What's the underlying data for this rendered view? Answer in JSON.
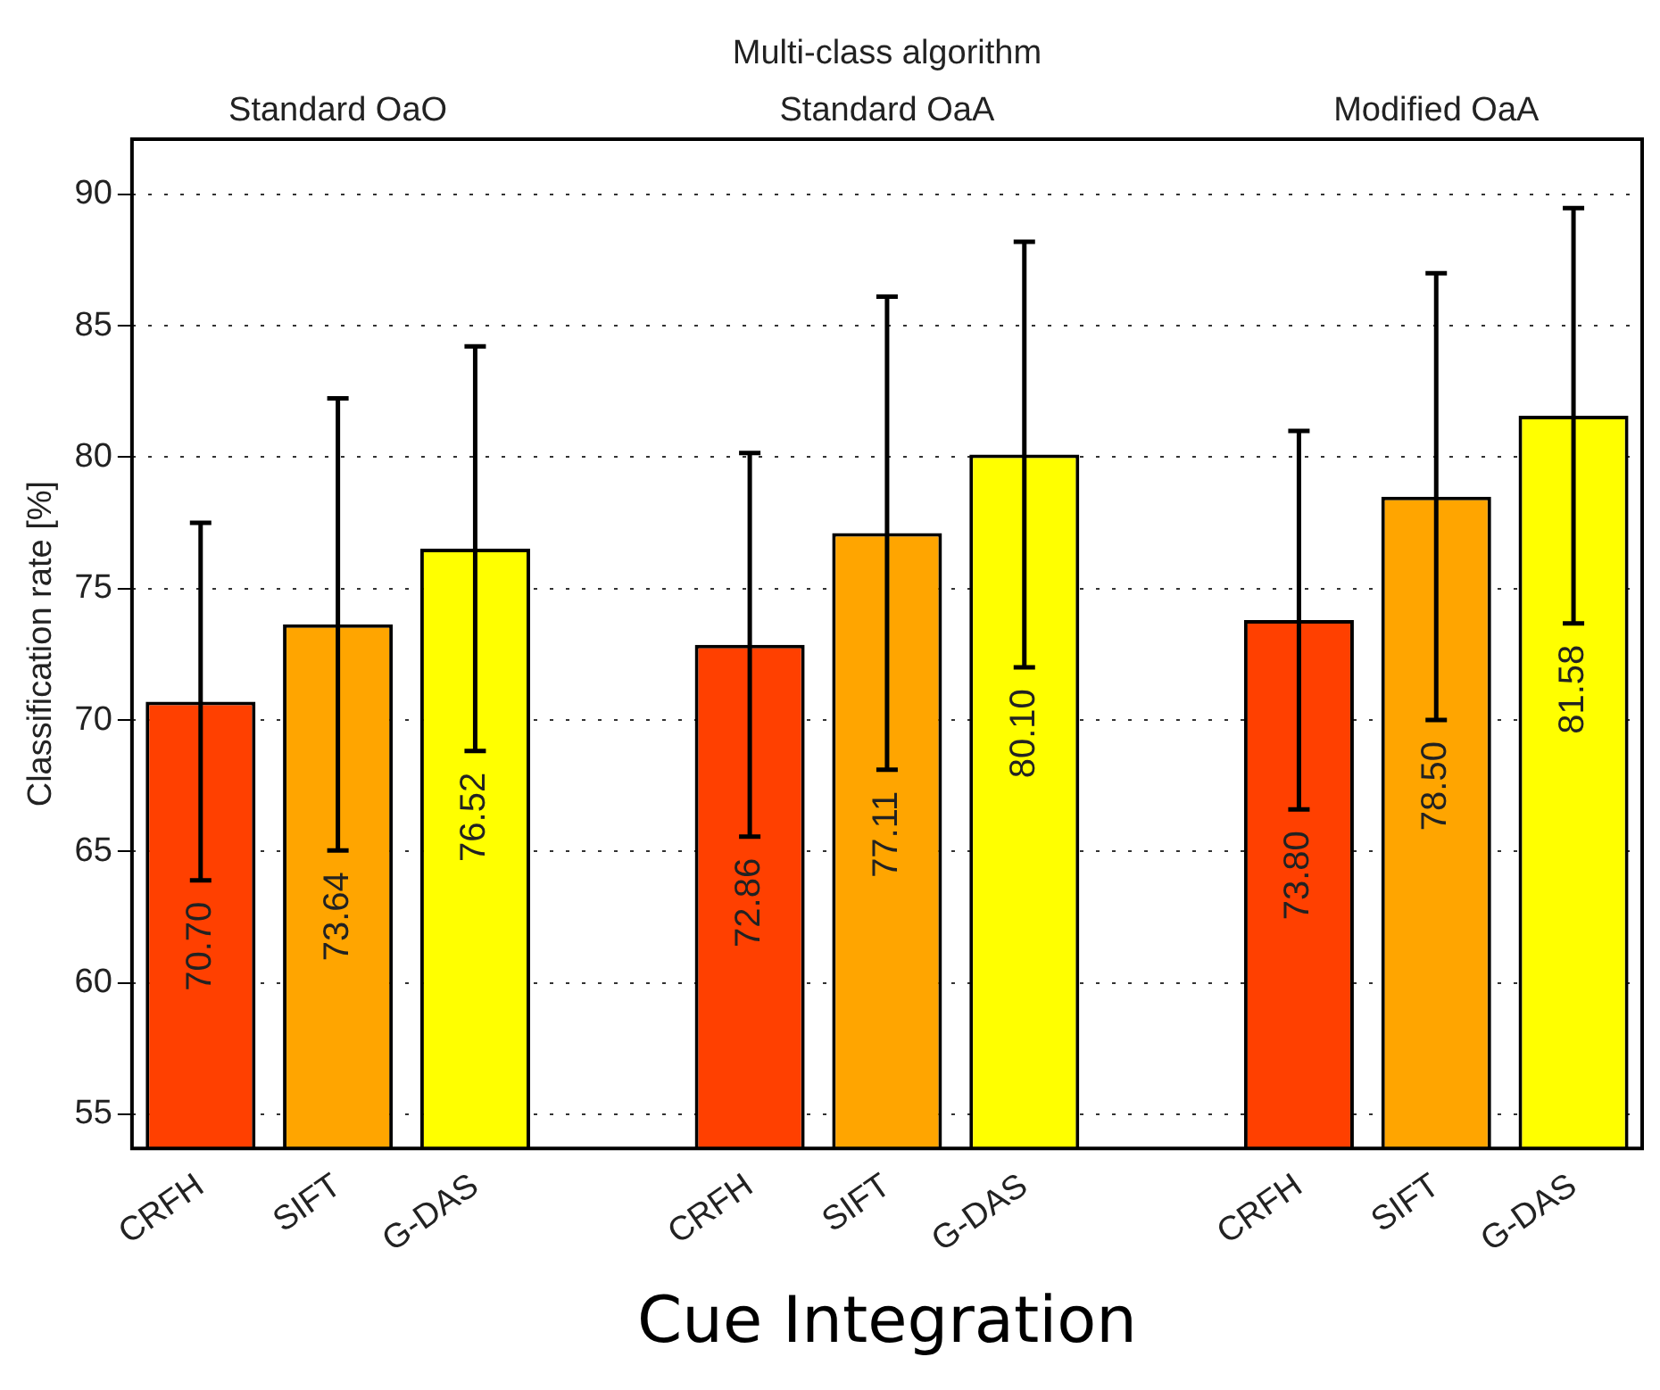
{
  "chart_data": {
    "type": "bar",
    "title": null,
    "xlabel": "Cue Integration",
    "ylabel": "Classification rate [%]",
    "x2label": "Multi-class algorithm",
    "categories": [
      "CRFH",
      "SIFT",
      "G-DAS",
      null,
      "CRFH",
      "SIFT",
      "G-DAS",
      null,
      "CRFH",
      "SIFT",
      "G-DAS"
    ],
    "values": [
      70.7,
      73.64,
      76.52,
      null,
      72.86,
      77.11,
      80.1,
      null,
      73.8,
      78.5,
      81.58
    ],
    "colors": [
      "#ff4000",
      "#ffa500",
      "#ffff00",
      null,
      "#ff4000",
      "#ffa500",
      "#ffff00",
      null,
      "#ff4000",
      "#ffa500",
      "#ffff00"
    ],
    "errors": [
      6.8,
      8.6,
      7.7,
      null,
      7.3,
      9.0,
      8.1,
      null,
      7.2,
      8.5,
      7.9
    ],
    "annotations": [
      "Standard OaO",
      "Standard OaA",
      "Modified OaA"
    ],
    "ylim": [
      53.7,
      92.1
    ],
    "yticks": [
      55,
      60,
      65,
      70,
      75,
      80,
      85,
      90
    ],
    "value_labels": [
      "70.70",
      "73.64",
      "76.52",
      null,
      "72.86",
      "77.11",
      "80.10",
      null,
      "73.80",
      "78.50",
      "81.58"
    ],
    "grid": "y"
  }
}
